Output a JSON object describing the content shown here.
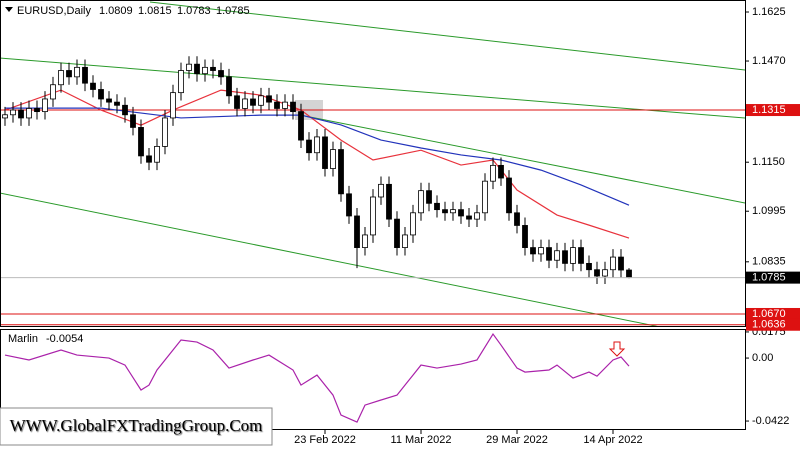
{
  "chart_data": {
    "type": "candlestick",
    "symbol": "EURUSD,Daily",
    "categories": [
      null,
      null,
      null,
      null,
      null,
      null,
      null,
      null,
      null,
      null,
      null,
      null,
      null,
      null,
      null,
      null,
      null,
      null,
      null,
      null,
      null,
      null,
      null,
      null,
      null,
      null,
      null,
      null,
      null,
      null,
      null,
      null,
      null,
      null,
      null,
      null,
      null,
      null,
      null,
      null,
      "23 Feb 2022",
      null,
      null,
      null,
      null,
      null,
      null,
      null,
      null,
      null,
      null,
      null,
      "11 Mar 2022",
      null,
      null,
      null,
      null,
      null,
      null,
      null,
      null,
      null,
      null,
      null,
      "29 Mar 2022",
      null,
      null,
      null,
      null,
      null,
      null,
      null,
      null,
      null,
      null,
      null,
      "14 Apr 2022",
      null,
      null
    ],
    "open": [
      1.129,
      1.13,
      1.1315,
      1.129,
      1.132,
      1.131,
      1.135,
      1.1395,
      1.144,
      1.142,
      1.145,
      1.14,
      1.138,
      1.135,
      1.134,
      1.133,
      1.13,
      1.126,
      1.117,
      1.115,
      1.12,
      1.129,
      1.137,
      1.144,
      1.146,
      1.143,
      1.145,
      1.144,
      1.142,
      1.136,
      1.132,
      1.135,
      1.133,
      1.136,
      1.134,
      1.132,
      1.134,
      1.131,
      1.122,
      1.118,
      1.123,
      1.113,
      1.119,
      1.105,
      1.098,
      1.088,
      1.092,
      1.104,
      1.108,
      1.097,
      1.088,
      1.092,
      1.099,
      1.106,
      1.102,
      1.1,
      1.099,
      1.1,
      1.098,
      1.097,
      1.099,
      1.109,
      1.114,
      1.11,
      1.099,
      1.095,
      1.088,
      1.086,
      1.088,
      1.084,
      1.087,
      1.083,
      1.088,
      1.083,
      1.081,
      1.079,
      1.081,
      1.085,
      1.0809
    ],
    "high": [
      1.1325,
      1.134,
      1.134,
      1.1345,
      1.1345,
      1.1375,
      1.142,
      1.1465,
      1.1465,
      1.1475,
      1.1475,
      1.1425,
      1.1405,
      1.1375,
      1.1365,
      1.1355,
      1.1325,
      1.1285,
      1.1195,
      1.1225,
      1.1315,
      1.1395,
      1.1465,
      1.1485,
      1.1485,
      1.1475,
      1.1475,
      1.1465,
      1.1445,
      1.1385,
      1.1375,
      1.1375,
      1.1385,
      1.1385,
      1.1365,
      1.1365,
      1.1365,
      1.1335,
      1.1245,
      1.1255,
      1.1255,
      1.1215,
      1.1215,
      1.1075,
      1.1005,
      1.0945,
      1.1065,
      1.1105,
      1.1105,
      1.0995,
      1.0945,
      1.1015,
      1.1085,
      1.1085,
      1.1045,
      1.1025,
      1.1025,
      1.1025,
      1.1005,
      1.1015,
      1.1115,
      1.1165,
      1.1165,
      1.1125,
      1.1015,
      1.0975,
      1.0905,
      1.0905,
      1.0905,
      1.0895,
      1.0895,
      1.0905,
      1.0905,
      1.0855,
      1.0835,
      1.0835,
      1.0875,
      1.0875,
      1.0815
    ],
    "low": [
      1.1265,
      1.1275,
      1.1265,
      1.1265,
      1.1285,
      1.1285,
      1.1325,
      1.137,
      1.1395,
      1.1395,
      1.1375,
      1.1355,
      1.1325,
      1.1315,
      1.1305,
      1.1275,
      1.1235,
      1.1145,
      1.1125,
      1.1125,
      1.1175,
      1.1265,
      1.1345,
      1.1415,
      1.1405,
      1.1405,
      1.1415,
      1.1395,
      1.1335,
      1.1295,
      1.1295,
      1.1305,
      1.1305,
      1.1315,
      1.1295,
      1.1295,
      1.1285,
      1.1195,
      1.1155,
      1.1155,
      1.1105,
      1.1105,
      1.1025,
      1.0955,
      1.0815,
      1.0855,
      1.0895,
      1.1015,
      1.0945,
      1.0855,
      1.0855,
      1.0895,
      1.0965,
      1.0995,
      1.0975,
      1.0965,
      1.0965,
      1.0955,
      1.0945,
      1.0945,
      1.0965,
      1.1065,
      1.1075,
      1.0965,
      1.0925,
      1.0855,
      1.0835,
      1.0835,
      1.0815,
      1.0815,
      1.0805,
      1.0805,
      1.0805,
      1.0785,
      1.0765,
      1.0765,
      1.0785,
      1.0784,
      1.0783
    ],
    "close": [
      1.13,
      1.1315,
      1.129,
      1.132,
      1.131,
      1.135,
      1.1395,
      1.144,
      1.142,
      1.145,
      1.14,
      1.138,
      1.135,
      1.134,
      1.133,
      1.13,
      1.126,
      1.117,
      1.115,
      1.12,
      1.129,
      1.137,
      1.144,
      1.146,
      1.143,
      1.145,
      1.144,
      1.142,
      1.136,
      1.132,
      1.135,
      1.133,
      1.136,
      1.134,
      1.132,
      1.134,
      1.131,
      1.122,
      1.118,
      1.123,
      1.113,
      1.119,
      1.105,
      1.098,
      1.088,
      1.092,
      1.104,
      1.108,
      1.097,
      1.088,
      1.092,
      1.099,
      1.106,
      1.102,
      1.1,
      1.099,
      1.1,
      1.098,
      1.097,
      1.099,
      1.109,
      1.114,
      1.11,
      1.099,
      1.095,
      1.088,
      1.086,
      1.088,
      1.084,
      1.087,
      1.083,
      1.088,
      1.083,
      1.081,
      1.079,
      1.081,
      1.085,
      1.0809,
      1.0785
    ],
    "ylim": [
      1.0632,
      1.1663
    ],
    "yticks": [
      1.1625,
      {
        "value": 1.147,
        "label": "1.1470"
      },
      {
        "value": 1.115,
        "label": "1.1150"
      },
      1.0995,
      1.0835
    ],
    "levels": [
      1.1315,
      {
        "value": 1.067,
        "label": "1.0670"
      },
      1.0636
    ],
    "level_color": "#dd1111",
    "series": [
      {
        "color": "#e8323c",
        "x": [
          0,
          7,
          12,
          17,
          21,
          27,
          32,
          37,
          42,
          46,
          52,
          57,
          61,
          64,
          69,
          73,
          78
        ],
        "values": [
          1.1315,
          1.1378,
          1.1315,
          1.1267,
          1.1315,
          1.1378,
          1.1362,
          1.1315,
          1.122,
          1.1157,
          1.1188,
          1.1141,
          1.1157,
          1.1062,
          1.0983,
          1.0951,
          1.091
        ]
      },
      {
        "color": "#2233bb",
        "x": [
          0,
          12,
          22,
          32,
          37,
          42,
          47,
          52,
          57,
          62,
          67,
          72,
          78
        ],
        "values": [
          1.1321,
          1.1321,
          1.129,
          1.1299,
          1.1299,
          1.1268,
          1.122,
          1.1195,
          1.1173,
          1.1157,
          1.1125,
          1.1078,
          1.1014
        ]
      }
    ],
    "indicator": {
      "name": "Marlin",
      "value": -0.0054,
      "color": "#aa22aa",
      "x": [
        0,
        3,
        7,
        9,
        13,
        15,
        17,
        18,
        19,
        22,
        24,
        26,
        28,
        31,
        33,
        36,
        37,
        39,
        41,
        42,
        44,
        45,
        47,
        49,
        51,
        52,
        54,
        57,
        59,
        61,
        62,
        64,
        65,
        68,
        69,
        71,
        73,
        74,
        76,
        77,
        78
      ],
      "values": [
        0.002,
        -0.0013,
        0.0054,
        0.002,
        0,
        -0.0047,
        -0.0214,
        -0.0181,
        -0.008,
        0.0121,
        0.0107,
        0.0054,
        -0.0067,
        -0.0013,
        0.002,
        -0.008,
        -0.0181,
        -0.0114,
        -0.0248,
        -0.0382,
        -0.0429,
        -0.0315,
        -0.0281,
        -0.0248,
        -0.0114,
        -0.0047,
        -0.0067,
        -0.004,
        -0.0013,
        0.0161,
        0.0087,
        -0.0067,
        -0.0094,
        -0.008,
        -0.0047,
        -0.0134,
        -0.0094,
        -0.0121,
        -0.0013,
        0.0007,
        -0.0054
      ],
      "ylim": [
        -0.0482,
        0.0188
      ],
      "yticks": [
        0.0175,
        {
          "value": 0,
          "label": "0.00"
        },
        -0.0422
      ]
    },
    "watermark": "WWW.GlobalFXTradingGroup.Com"
  }
}
